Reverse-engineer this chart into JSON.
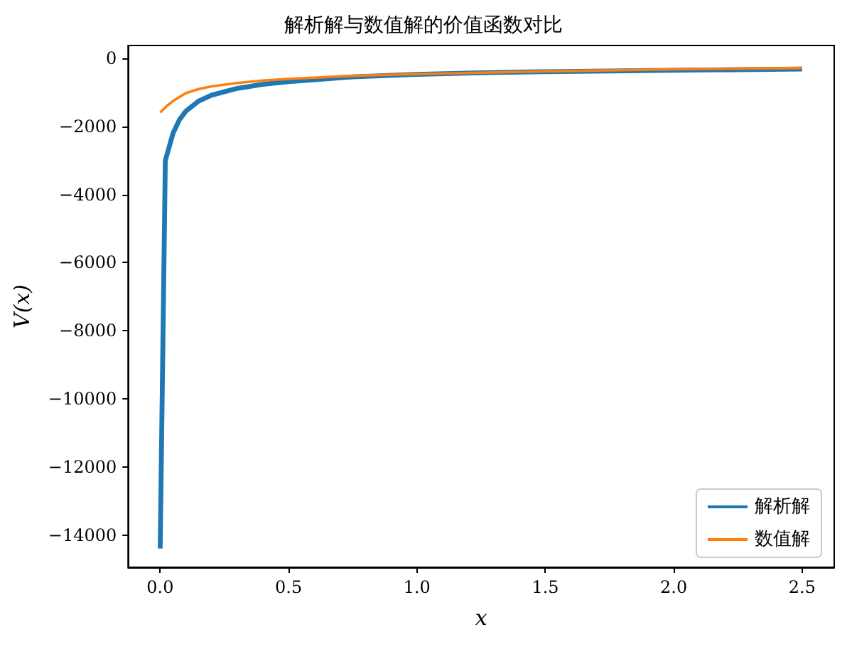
{
  "chart_data": {
    "type": "line",
    "title": "解析解与数值解的价值函数对比",
    "xlabel": "x",
    "ylabel": "V(x)",
    "series": [
      {
        "name": "解析解",
        "color": "#1f77b4",
        "x": [
          0,
          0.02,
          0.05,
          0.075,
          0.1,
          0.15,
          0.2,
          0.3,
          0.4,
          0.5,
          0.75,
          1.0,
          1.25,
          1.5,
          2.0,
          2.5
        ],
        "values": [
          -14400,
          -3000,
          -2200,
          -1800,
          -1550,
          -1250,
          -1080,
          -880,
          -760,
          -680,
          -540,
          -470,
          -420,
          -390,
          -350,
          -310
        ]
      },
      {
        "name": "数值解",
        "color": "#ff7f0e",
        "x": [
          0,
          0.025,
          0.05,
          0.1,
          0.15,
          0.2,
          0.3,
          0.4,
          0.5,
          0.75,
          1.0,
          1.25,
          1.5,
          2.0,
          2.5
        ],
        "values": [
          -1590,
          -1400,
          -1250,
          -1020,
          -900,
          -820,
          -720,
          -650,
          -600,
          -510,
          -460,
          -420,
          -380,
          -320,
          -280
        ]
      }
    ],
    "xlim": [
      -0.125,
      2.625
    ],
    "xticks": [
      {
        "value": 0,
        "label": "0.0"
      },
      0.5,
      {
        "value": 1,
        "label": "1.0"
      },
      1.5,
      {
        "value": 2,
        "label": "2.0"
      },
      2.5
    ],
    "ylim": [
      -14950,
      380
    ],
    "yticks": [
      -14000,
      -12000,
      -10000,
      -8000,
      -6000,
      -4000,
      -2000,
      0
    ],
    "grid": false,
    "legend": "bottom right",
    "marker": "none",
    "line_style": "solid"
  }
}
